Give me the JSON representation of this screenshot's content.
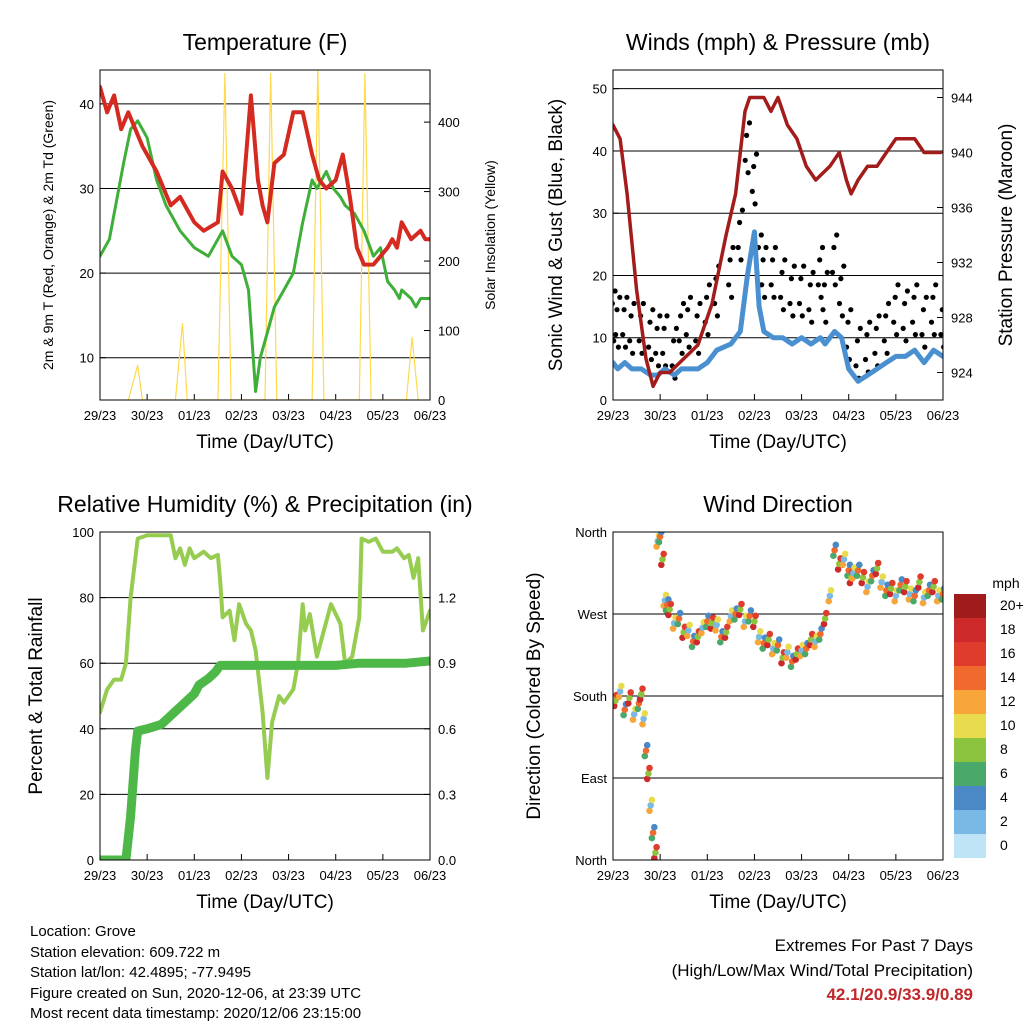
{
  "colors": {
    "temp_2m": "#e8931a",
    "temp_9m": "#d42a20",
    "dewpoint": "#3faf3a",
    "solar": "#ffd94a",
    "gust": "#000000",
    "wind": "#4a90d0",
    "pressure": "#a21c1c",
    "rh": "#96cc50",
    "rain": "#4db848",
    "extremes": "#c0282c"
  },
  "x_ticks": [
    "29/23",
    "30/23",
    "01/23",
    "02/23",
    "03/23",
    "04/23",
    "05/23",
    "06/23"
  ],
  "panels": {
    "temperature": {
      "title": "Temperature (F)",
      "xlabel": "Time (Day/UTC)",
      "ylabel_left": "2m & 9m T (Red, Orange) & 2m Td (Green)",
      "ylabel_right": "Solar Insolation (Yellow)",
      "yticks_left": [
        "10",
        "20",
        "30",
        "40"
      ],
      "yticks_right": [
        "0",
        "100",
        "200",
        "300",
        "400"
      ]
    },
    "winds": {
      "title": "Winds (mph) & Pressure (mb)",
      "xlabel": "Time (Day/UTC)",
      "ylabel_left": "Sonic Wind & Gust (Blue, Black)",
      "ylabel_right": "Station Pressure (Maroon)",
      "yticks_left": [
        "0",
        "10",
        "20",
        "30",
        "40",
        "50"
      ],
      "yticks_right": [
        "924",
        "928",
        "932",
        "936",
        "940",
        "944"
      ]
    },
    "humidity": {
      "title": "Relative Humidity (%) & Precipitation (in)",
      "xlabel": "Time (Day/UTC)",
      "ylabel_left": "Percent & Total Rainfall",
      "yticks_left": [
        "0",
        "20",
        "40",
        "60",
        "80",
        "100"
      ],
      "yticks_right": [
        "0.0",
        "0.3",
        "0.6",
        "0.9",
        "1.2"
      ]
    },
    "direction": {
      "title": "Wind Direction",
      "xlabel": "Time (Day/UTC)",
      "ylabel_left": "Direction (Colored By Speed)",
      "yticks_left": [
        "North",
        "East",
        "South",
        "West",
        "North"
      ],
      "legend_title": "mph",
      "legend_labels": [
        "20+",
        "18",
        "16",
        "14",
        "12",
        "10",
        "8",
        "6",
        "4",
        "2",
        "0"
      ],
      "legend_colors": [
        "#a01c1c",
        "#cc2a2a",
        "#e03c2e",
        "#ef6a2c",
        "#f8a63a",
        "#e8dc4e",
        "#8cc43f",
        "#4aa86a",
        "#4a88c6",
        "#7ab8e6",
        "#bfe4f6"
      ]
    }
  },
  "info": {
    "location": "Location: Grove",
    "elevation": "Station elevation: 609.722 m",
    "latlon": "Station lat/lon: 42.4895; -77.9495",
    "created": "Figure created on Sun, 2020-12-06, at 23:39 UTC",
    "recent": "Most recent data timestamp: 2020/12/06 23:15:00"
  },
  "extremes": {
    "title": "Extremes For Past 7 Days",
    "subtitle": "(High/Low/Max Wind/Total Precipitation)",
    "values": "42.1/20.9/33.9/0.89"
  },
  "chart_data": [
    {
      "type": "line",
      "x_unit": "days since 29/23",
      "xlim": [
        0,
        7
      ],
      "ylim": [
        5,
        44
      ],
      "y2lim": [
        0,
        475
      ],
      "series": [
        {
          "axis": "left",
          "x": [
            0,
            0.15,
            0.3,
            0.45,
            0.6,
            0.9,
            1.2,
            1.5,
            1.7,
            2.0,
            2.2,
            2.5,
            2.6,
            2.8,
            3.0,
            3.2,
            3.35,
            3.45,
            3.55,
            3.7,
            3.9,
            4.1,
            4.3,
            4.5,
            4.65,
            4.8,
            5.0,
            5.15,
            5.3,
            5.45,
            5.6,
            5.8,
            5.95,
            6.1,
            6.2,
            6.3,
            6.4,
            6.6,
            6.8,
            6.9,
            7.0
          ],
          "values": [
            42,
            39,
            41,
            37,
            39,
            35,
            32,
            28,
            29,
            26,
            25,
            26,
            32,
            30,
            27,
            41,
            31,
            28,
            26,
            33,
            34,
            39,
            39,
            34,
            31,
            30,
            31,
            34,
            29,
            23,
            21,
            21,
            22,
            23,
            24,
            23,
            26,
            24,
            25,
            24,
            24
          ]
        },
        {
          "axis": "left",
          "x": [
            0,
            0.2,
            0.3,
            0.5,
            0.65,
            0.8,
            1.0,
            1.2,
            1.4,
            1.7,
            2.0,
            2.3,
            2.6,
            2.8,
            3.0,
            3.15,
            3.3,
            3.4,
            3.55,
            3.7,
            3.9,
            4.1,
            4.3,
            4.5,
            4.6,
            4.8,
            4.95,
            5.1,
            5.2,
            5.4,
            5.6,
            5.8,
            5.95,
            6.1,
            6.25,
            6.35,
            6.4,
            6.6,
            6.7,
            6.8,
            7.0
          ],
          "values": [
            22,
            24,
            27,
            33,
            37,
            38,
            36,
            31,
            28,
            25,
            23,
            22,
            25,
            22,
            21,
            18,
            6,
            10,
            13,
            16,
            18,
            20,
            26,
            31,
            30,
            32,
            30,
            29,
            28,
            27,
            25,
            22,
            23,
            19,
            18,
            17,
            18,
            17,
            16,
            17,
            17
          ]
        },
        {
          "axis": "right",
          "x": [
            0.6,
            0.8,
            0.9,
            1.6,
            1.75,
            1.85,
            2.5,
            2.65,
            2.78,
            3.5,
            3.62,
            3.75,
            4.5,
            4.62,
            4.75,
            5.5,
            5.62,
            5.75,
            6.5,
            6.62,
            6.75
          ],
          "values": [
            0,
            50,
            0,
            0,
            110,
            0,
            0,
            470,
            0,
            0,
            470,
            0,
            0,
            480,
            0,
            0,
            470,
            0,
            0,
            90,
            0
          ]
        }
      ]
    },
    {
      "type": "line",
      "x_unit": "days since 29/23",
      "xlim": [
        0,
        7
      ],
      "ylim": [
        0,
        53
      ],
      "y2lim": [
        922,
        946
      ],
      "series": [
        {
          "axis": "left",
          "type": "scatter",
          "x": [
            0,
            0.1,
            0.25,
            0.4,
            0.6,
            0.8,
            0.95,
            1.1,
            1.3,
            1.45,
            1.6,
            1.8,
            2.0,
            2.2,
            2.5,
            2.7,
            2.85,
            3.0,
            3.1,
            3.2,
            3.4,
            3.6,
            3.8,
            4.0,
            4.2,
            4.4,
            4.5,
            4.7,
            4.85,
            5.0,
            5.2,
            5.4,
            5.6,
            5.8,
            6.0,
            6.2,
            6.4,
            6.6,
            6.8,
            7.0
          ],
          "values": [
            13,
            12,
            12,
            11,
            11,
            10,
            9,
            9,
            7,
            11,
            12,
            11,
            14,
            17,
            20,
            26,
            40,
            35,
            22,
            20,
            20,
            18,
            17,
            17,
            16,
            20,
            16,
            22,
            17,
            10,
            7,
            8,
            9,
            11,
            14,
            13,
            14,
            12,
            14,
            12
          ]
        },
        {
          "axis": "left",
          "x": [
            0,
            0.1,
            0.25,
            0.4,
            0.6,
            0.8,
            0.95,
            1.1,
            1.3,
            1.45,
            1.6,
            1.8,
            2.0,
            2.2,
            2.5,
            2.7,
            2.85,
            3.0,
            3.1,
            3.2,
            3.4,
            3.6,
            3.8,
            4.0,
            4.2,
            4.4,
            4.5,
            4.7,
            4.85,
            5.0,
            5.2,
            5.4,
            5.6,
            5.8,
            6.0,
            6.2,
            6.4,
            6.6,
            6.8,
            7.0
          ],
          "values": [
            6,
            5,
            6,
            5,
            5,
            4,
            4,
            5,
            4,
            5,
            5,
            5,
            6,
            8,
            9,
            11,
            20,
            27,
            15,
            11,
            10,
            10,
            9,
            10,
            9,
            10,
            9,
            11,
            10,
            5,
            3,
            4,
            5,
            6,
            7,
            7,
            8,
            6,
            8,
            7
          ]
        },
        {
          "axis": "right",
          "x": [
            0,
            0.15,
            0.3,
            0.5,
            0.7,
            0.85,
            1.0,
            1.2,
            1.5,
            1.8,
            2.1,
            2.4,
            2.6,
            2.8,
            2.9,
            3.0,
            3.2,
            3.35,
            3.5,
            3.7,
            3.9,
            4.1,
            4.3,
            4.6,
            4.8,
            4.95,
            5.05,
            5.2,
            5.4,
            5.6,
            5.8,
            6.0,
            6.2,
            6.4,
            6.6,
            6.8,
            6.95
          ],
          "values": [
            942,
            941,
            937,
            930,
            925,
            923,
            924,
            924,
            925,
            926,
            929,
            934,
            937,
            943,
            944,
            944,
            944,
            943,
            944,
            942,
            941,
            939,
            938,
            939,
            940,
            938,
            937,
            938,
            939,
            939,
            940,
            941,
            941,
            941,
            940,
            940,
            940
          ]
        }
      ]
    },
    {
      "type": "line",
      "x_unit": "days since 29/23",
      "xlim": [
        0,
        7
      ],
      "ylim": [
        0,
        100
      ],
      "y2lim": [
        0,
        1.5
      ],
      "series": [
        {
          "axis": "left",
          "x": [
            0,
            0.15,
            0.3,
            0.45,
            0.55,
            0.65,
            0.8,
            1.0,
            1.3,
            1.5,
            1.6,
            1.7,
            1.8,
            1.9,
            2.0,
            2.2,
            2.35,
            2.5,
            2.55,
            2.6,
            2.75,
            2.85,
            2.95,
            3.1,
            3.2,
            3.3,
            3.45,
            3.55,
            3.65,
            3.8,
            3.9,
            4.1,
            4.2,
            4.3,
            4.35,
            4.45,
            4.6,
            4.75,
            4.9,
            5.1,
            5.2,
            5.35,
            5.5,
            5.55,
            5.7,
            5.85,
            6.0,
            6.2,
            6.3,
            6.45,
            6.55,
            6.65,
            6.75,
            6.85,
            7.0
          ],
          "values": [
            45,
            52,
            55,
            55,
            60,
            80,
            98,
            99,
            99,
            99,
            92,
            95,
            90,
            95,
            92,
            94,
            92,
            93,
            85,
            74,
            76,
            67,
            78,
            72,
            70,
            64,
            45,
            25,
            42,
            50,
            48,
            52,
            60,
            78,
            70,
            75,
            62,
            70,
            78,
            72,
            60,
            62,
            74,
            98,
            97,
            98,
            94,
            94,
            95,
            92,
            93,
            86,
            92,
            70,
            76
          ]
        },
        {
          "axis": "right",
          "x": [
            0,
            0.3,
            0.55,
            0.65,
            0.75,
            0.8,
            1.0,
            1.3,
            1.6,
            1.8,
            2.0,
            2.1,
            2.3,
            2.45,
            2.55,
            2.7,
            3.0,
            3.5,
            4.0,
            4.5,
            5.0,
            5.5,
            6.0,
            6.5,
            7.0
          ],
          "values": [
            0,
            0,
            0,
            0.2,
            0.5,
            0.59,
            0.6,
            0.62,
            0.68,
            0.72,
            0.76,
            0.8,
            0.83,
            0.86,
            0.89,
            0.89,
            0.89,
            0.89,
            0.89,
            0.89,
            0.89,
            0.9,
            0.9,
            0.9,
            0.91
          ]
        }
      ]
    },
    {
      "type": "scatter",
      "x_unit": "days since 29/23",
      "xlim": [
        0,
        7
      ],
      "ylim": [
        0,
        360
      ],
      "y_label_meaning": "0=North, 90=East, 180=South, 270=West, 360=North",
      "series": [
        {
          "x": [
            0.05,
            0.15,
            0.25,
            0.35,
            0.45,
            0.55,
            0.6,
            0.65,
            0.7,
            0.75,
            0.8,
            0.85,
            0.9,
            0.95,
            1.0,
            1.05,
            1.1,
            1.15,
            1.2,
            1.3,
            1.4,
            1.5,
            1.6,
            1.7,
            1.8,
            1.9,
            2.0,
            2.1,
            2.2,
            2.3,
            2.4,
            2.5,
            2.6,
            2.7,
            2.8,
            2.9,
            3.0,
            3.1,
            3.2,
            3.3,
            3.4,
            3.5,
            3.6,
            3.7,
            3.8,
            3.9,
            4.0,
            4.1,
            4.2,
            4.3,
            4.4,
            4.5,
            4.6,
            4.7,
            4.8,
            4.9,
            5.0,
            5.05,
            5.1,
            5.2,
            5.3,
            5.4,
            5.5,
            5.6,
            5.7,
            5.8,
            5.9,
            6.0,
            6.1,
            6.2,
            6.3,
            6.4,
            6.5,
            6.6,
            6.7,
            6.8,
            6.9,
            7.0
          ],
          "values": [
            175,
            185,
            165,
            178,
            160,
            172,
            182,
            155,
            120,
            95,
            60,
            30,
            8,
            350,
            355,
            330,
            285,
            280,
            275,
            260,
            265,
            250,
            252,
            240,
            245,
            255,
            262,
            260,
            258,
            245,
            250,
            268,
            270,
            275,
            262,
            268,
            262,
            245,
            238,
            242,
            232,
            236,
            222,
            228,
            218,
            226,
            230,
            232,
            242,
            240,
            248,
            265,
            290,
            340,
            325,
            330,
            318,
            310,
            315,
            318,
            310,
            300,
            312,
            320,
            305,
            296,
            298,
            290,
            302,
            300,
            292,
            290,
            305,
            288,
            296,
            300,
            290,
            292
          ]
        }
      ]
    }
  ]
}
